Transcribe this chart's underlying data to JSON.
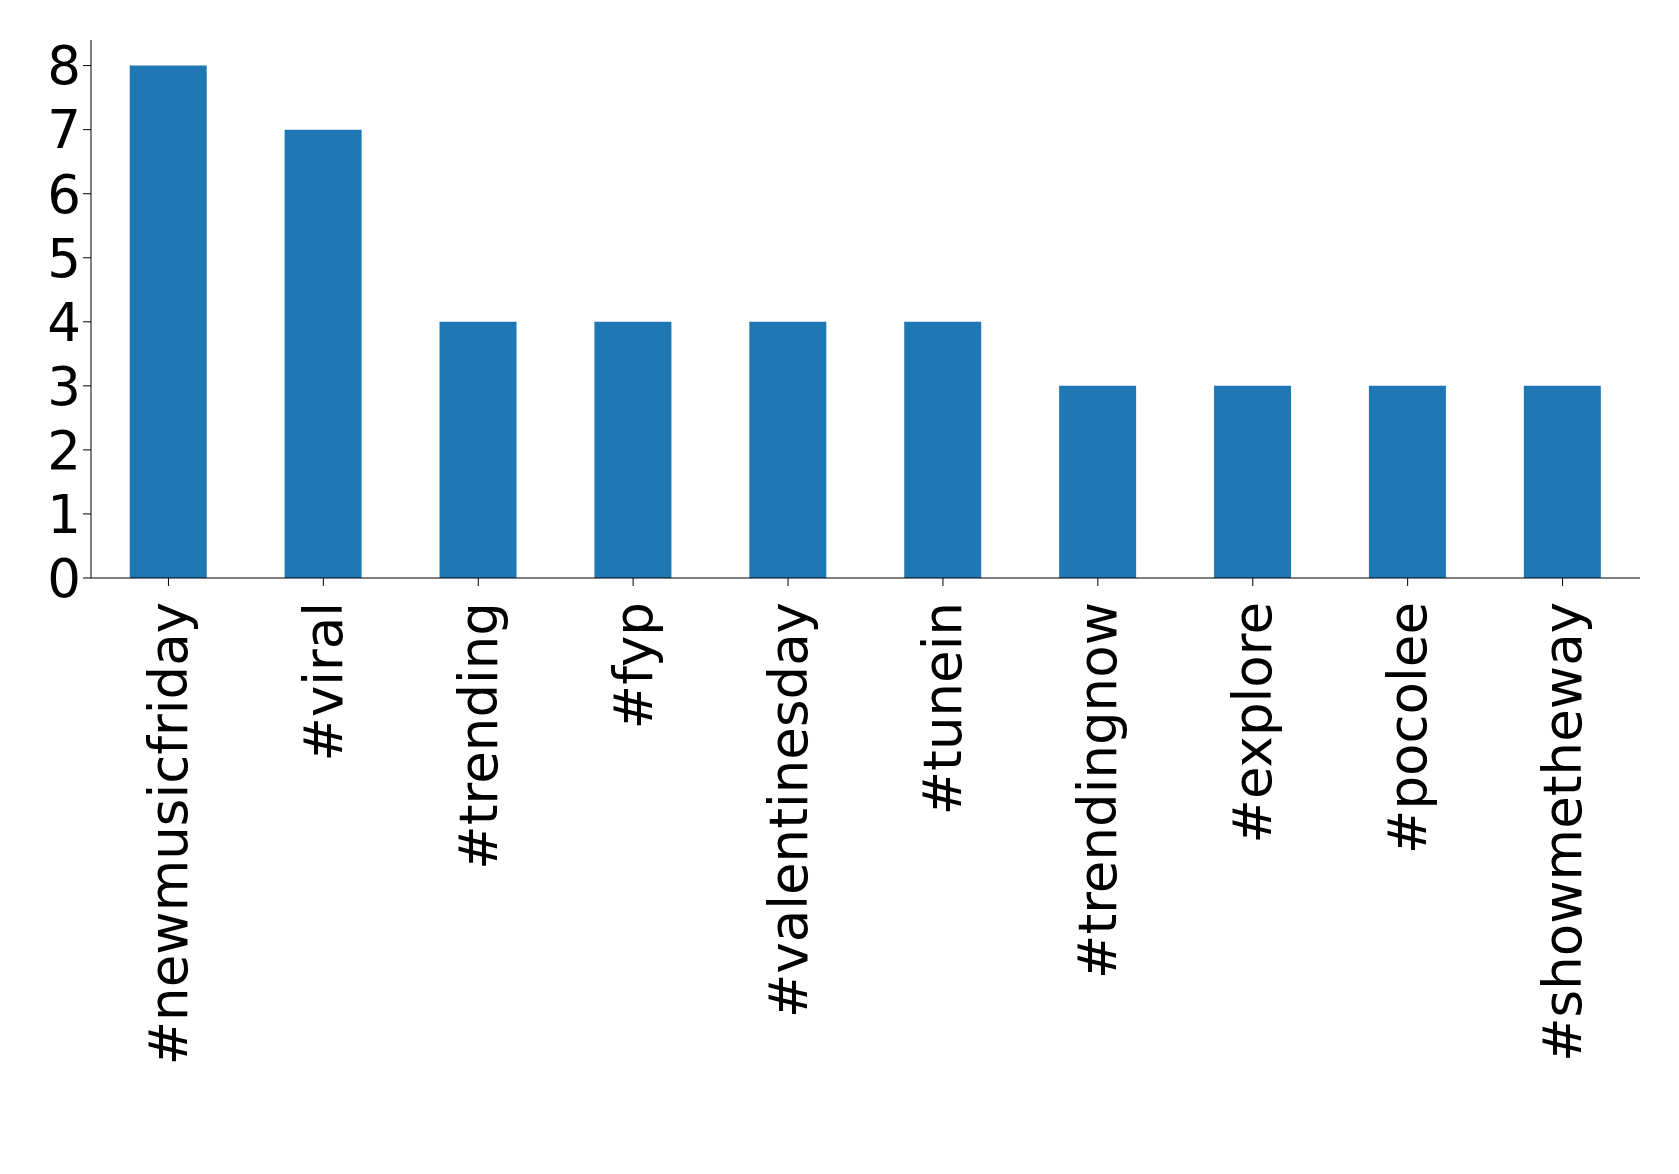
{
  "chart_data": {
    "type": "bar",
    "categories": [
      "#newmusicfriday",
      "#viral",
      "#trending",
      "#fyp",
      "#valentinesday",
      "#tunein",
      "#trendingnow",
      "#explore",
      "#pocolee",
      "#showmetheway"
    ],
    "values": [
      8,
      7,
      4,
      4,
      4,
      4,
      3,
      3,
      3,
      3
    ],
    "color": "#1f77b4",
    "ylim": [
      0,
      8.4
    ],
    "yticks": [
      0,
      1,
      2,
      3,
      4,
      5,
      6,
      7,
      8
    ],
    "grid": false,
    "legend": false
  }
}
